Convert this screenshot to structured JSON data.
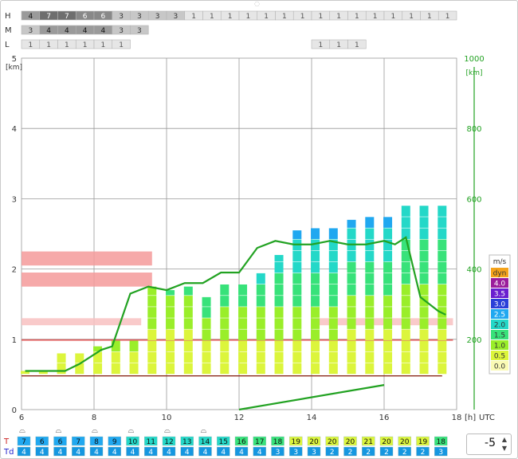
{
  "chart_data": {
    "type": "meteogram",
    "cloud_rows": [
      {
        "label": "H",
        "values": [
          "4",
          "7",
          "7",
          "6",
          "6",
          "3",
          "3",
          "3",
          "3",
          "1",
          "1",
          "1",
          "1",
          "1",
          "1",
          "1",
          "1",
          "1",
          "1",
          "1",
          "1",
          "1",
          "1",
          "1"
        ]
      },
      {
        "label": "M",
        "values": [
          "3",
          "4",
          "4",
          "4",
          "4",
          "3",
          "3",
          "",
          "",
          "",
          "",
          "",
          "",
          "",
          "",
          "",
          "",
          "",
          "",
          "",
          "",
          "",
          "",
          ""
        ]
      },
      {
        "label": "L",
        "values": [
          "1",
          "1",
          "1",
          "1",
          "1",
          "1",
          "",
          "",
          "",
          "",
          "",
          "",
          "",
          "",
          "",
          "",
          "1",
          "1",
          "1",
          "",
          "",
          "",
          "",
          ""
        ]
      }
    ],
    "y_left": {
      "unit": "[km]",
      "ticks": [
        "0",
        "1",
        "2",
        "3",
        "4",
        "5"
      ],
      "range": [
        0,
        5
      ]
    },
    "y_right": {
      "unit": "[km]",
      "ticks": [
        "200",
        "400",
        "600",
        "800",
        "1000"
      ]
    },
    "x_axis": {
      "ticks": [
        "6",
        "8",
        "10",
        "12",
        "14",
        "16",
        "18"
      ],
      "unit": "[h]",
      "suffix": "UTC",
      "range": [
        6,
        18
      ]
    },
    "legend": {
      "title": "m/s",
      "entries": [
        {
          "label": "dyn",
          "color": "#f5a31a"
        },
        {
          "label": "4.0",
          "color": "#9b1d9b"
        },
        {
          "label": "3.5",
          "color": "#6a1fcf"
        },
        {
          "label": "3.0",
          "color": "#2a3fd8"
        },
        {
          "label": "2.5",
          "color": "#20a8f0"
        },
        {
          "label": "2.0",
          "color": "#24d8c8"
        },
        {
          "label": "1.5",
          "color": "#38e27a"
        },
        {
          "label": "1.0",
          "color": "#9aee2a"
        },
        {
          "label": "0.5",
          "color": "#dcf53c"
        },
        {
          "label": "0.0",
          "color": "#fafab4"
        }
      ]
    },
    "columns_x": [
      6.1,
      6.6,
      7.1,
      7.6,
      8.1,
      8.6,
      9.1,
      9.6,
      10.1,
      10.6,
      11.1,
      11.6,
      12.1,
      12.6,
      13.1,
      13.6,
      14.1,
      14.6,
      15.1,
      15.6,
      16.1,
      16.6,
      17.1,
      17.6
    ],
    "thermal_tops_km": [
      0.06,
      0.06,
      0.06,
      0.06,
      0.06,
      0.06,
      0.55,
      0.1,
      1.9,
      1.3,
      1.6,
      1.7,
      1.9,
      2.0,
      2.2,
      2.3,
      2.55,
      2.4,
      2.6,
      2.7,
      2.75,
      2.8,
      2.3,
      1.2,
      0.5
    ],
    "thermal_column_top_km": [
      0.55,
      0.55,
      0.8,
      0.8,
      0.9,
      1.0,
      1.0,
      1.75,
      1.7,
      1.75,
      1.6,
      1.8,
      1.8,
      2.0,
      2.2,
      2.55,
      2.6,
      2.65,
      2.7,
      2.75,
      2.8,
      2.95,
      2.95,
      2.95
    ],
    "thermal_column_levels": [
      2,
      2,
      2,
      2,
      3,
      3,
      3,
      4,
      5,
      5,
      6,
      6,
      6,
      7,
      8,
      9,
      9,
      9,
      9,
      9,
      9,
      8,
      8,
      8
    ],
    "boundary_layer_line": {
      "x": [
        6.1,
        7.2,
        7.6,
        8.2,
        8.5,
        9.0,
        9.5,
        10.0,
        10.5,
        11.0,
        11.5,
        12.0,
        12.5,
        13.0,
        13.5,
        14.0,
        14.5,
        15.0,
        15.5,
        16.0,
        16.3,
        16.6,
        17.0,
        17.5,
        17.7
      ],
      "y": [
        0.55,
        0.55,
        0.65,
        0.85,
        0.9,
        1.65,
        1.75,
        1.7,
        1.8,
        1.8,
        1.95,
        1.95,
        2.3,
        2.4,
        2.35,
        2.35,
        2.4,
        2.35,
        2.35,
        2.4,
        2.35,
        2.45,
        1.6,
        1.4,
        1.35
      ]
    },
    "ground_line": {
      "x": [
        12.0,
        16.0
      ],
      "y": [
        0.0,
        0.35
      ]
    },
    "temperature_row": {
      "label": "T",
      "values": [
        "7",
        "6",
        "6",
        "7",
        "8",
        "9",
        "10",
        "11",
        "12",
        "13",
        "14",
        "15",
        "16",
        "17",
        "18",
        "19",
        "20",
        "20",
        "20",
        "21",
        "20",
        "20",
        "19",
        "18"
      ]
    },
    "dewpoint_row": {
      "label": "Td",
      "values": [
        "4",
        "4",
        "4",
        "4",
        "4",
        "4",
        "4",
        "4",
        "4",
        "4",
        "4",
        "4",
        "4",
        "4",
        "3",
        "3",
        "3",
        "2",
        "2",
        "2",
        "2",
        "2",
        "2",
        "3"
      ]
    },
    "stepper_value": "-5"
  }
}
